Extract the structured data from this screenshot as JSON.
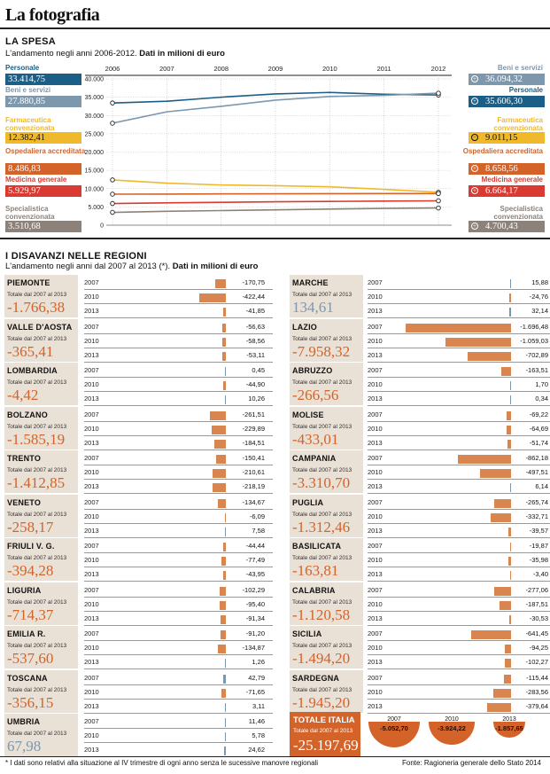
{
  "header": {
    "title": "La fotografia"
  },
  "spesa": {
    "title": "LA SPESA",
    "subtitle_a": "L'andamento negli anni 2006-2012. ",
    "subtitle_b": "Dati in milioni di euro",
    "left": [
      {
        "label": "Personale",
        "value": "33.414,75",
        "color": "#1b5e86",
        "text_dark": false
      },
      {
        "label": "Beni e servizi",
        "value": "27.880,85",
        "color": "#7d97ad",
        "text_dark": false
      },
      {
        "label": "Farmaceutica convenzionata",
        "value": "12.382,41",
        "color": "#f0b92b",
        "text_dark": true
      },
      {
        "label": "Ospedaliera accreditata",
        "value": "8.486,83",
        "color": "#d4632a",
        "text_dark": false
      },
      {
        "label": "Medicina generale",
        "value": "5.929,97",
        "color": "#d93a32",
        "text_dark": false
      },
      {
        "label": "Specialistica convenzionata",
        "value": "3.510,68",
        "color": "#8c8279",
        "text_dark": false
      }
    ],
    "right": [
      {
        "label": "Beni e servizi",
        "value": "36.094,32",
        "icon": "+",
        "color": "#7d97ad",
        "text_dark": false
      },
      {
        "label": "Personale",
        "value": "35.606,30",
        "icon": "+",
        "color": "#1b5e86",
        "text_dark": false
      },
      {
        "label": "Farmaceutica convenzionata",
        "value": "9.011,15",
        "icon": "−",
        "color": "#f0b92b",
        "text_dark": true
      },
      {
        "label": "Ospedaliera accreditata",
        "value": "8.658,56",
        "icon": "+",
        "color": "#d4632a",
        "text_dark": false
      },
      {
        "label": "Medicina generale",
        "value": "6.664,17",
        "icon": "+",
        "color": "#d93a32",
        "text_dark": false
      },
      {
        "label": "Specialistica convenzionata",
        "value": "4.700,43",
        "icon": "+",
        "color": "#8c8279",
        "text_dark": false
      }
    ]
  },
  "chart_data": [
    {
      "type": "line",
      "title": "LA SPESA",
      "x": [
        2006,
        2007,
        2008,
        2009,
        2010,
        2011,
        2012
      ],
      "ylim": [
        0,
        40000
      ],
      "yticks": [
        "40.000",
        "35.000",
        "30.000",
        "25.000",
        "20.000",
        "15.000",
        "10.000",
        "5.000",
        "0"
      ],
      "series": [
        {
          "name": "Personale",
          "color": "#1b5e86",
          "values": [
            33414.75,
            33900,
            35000,
            35900,
            36300,
            35800,
            35606.3
          ]
        },
        {
          "name": "Beni e servizi",
          "color": "#7d97ad",
          "values": [
            27880.85,
            31000,
            32500,
            34200,
            35200,
            35500,
            36094.32
          ]
        },
        {
          "name": "Farmaceutica convenzionata",
          "color": "#f0b92b",
          "values": [
            12382.41,
            11500,
            11000,
            10800,
            10500,
            9800,
            9011.15
          ]
        },
        {
          "name": "Ospedaliera accreditata",
          "color": "#d4632a",
          "values": [
            8486.83,
            8500,
            8550,
            8600,
            8620,
            8640,
            8658.56
          ]
        },
        {
          "name": "Medicina generale",
          "color": "#d93a32",
          "values": [
            5929.97,
            6100,
            6250,
            6400,
            6500,
            6600,
            6664.17
          ]
        },
        {
          "name": "Specialistica convenzionata",
          "color": "#8c8279",
          "values": [
            3510.68,
            3800,
            4000,
            4200,
            4400,
            4600,
            4700.43
          ]
        }
      ]
    },
    {
      "type": "bar",
      "title": "I DISAVANZI NELLE REGIONI",
      "categories": [
        "2007",
        "2010",
        "2013"
      ],
      "regions": [
        {
          "name": "PIEMONTE",
          "total": "-1.766,38",
          "values": [
            -170.75,
            -422.44,
            -41.85
          ],
          "labels": [
            "-170,75",
            "-422,44",
            "-41,85"
          ]
        },
        {
          "name": "VALLE D'AOSTA",
          "total": "-365,41",
          "values": [
            -56.63,
            -58.56,
            -53.11
          ],
          "labels": [
            "-56,63",
            "-58,56",
            "-53,11"
          ]
        },
        {
          "name": "LOMBARDIA",
          "total": "-4,42",
          "values": [
            0.45,
            -44.9,
            10.26
          ],
          "labels": [
            "0,45",
            "-44,90",
            "10,26"
          ]
        },
        {
          "name": "BOLZANO",
          "total": "-1.585,19",
          "values": [
            -261.51,
            -229.89,
            -184.51
          ],
          "labels": [
            "-261,51",
            "-229,89",
            "-184,51"
          ]
        },
        {
          "name": "TRENTO",
          "total": "-1.412,85",
          "values": [
            -150.41,
            -210.61,
            -218.19
          ],
          "labels": [
            "-150,41",
            "-210,61",
            "-218,19"
          ]
        },
        {
          "name": "VENETO",
          "total": "-258,17",
          "values": [
            -134.67,
            -6.09,
            7.58
          ],
          "labels": [
            "-134,67",
            "-6,09",
            "7,58"
          ]
        },
        {
          "name": "FRIULI V. G.",
          "total": "-394,28",
          "values": [
            -44.44,
            -77.49,
            -43.95
          ],
          "labels": [
            "-44,44",
            "-77,49",
            "-43,95"
          ]
        },
        {
          "name": "LIGURIA",
          "total": "-714,37",
          "values": [
            -102.29,
            -95.4,
            -91.34
          ],
          "labels": [
            "-102,29",
            "-95,40",
            "-91,34"
          ]
        },
        {
          "name": "EMILIA R.",
          "total": "-537,60",
          "values": [
            -91.2,
            -134.87,
            1.26
          ],
          "labels": [
            "-91,20",
            "-134,87",
            "1,26"
          ]
        },
        {
          "name": "TOSCANA",
          "total": "-356,15",
          "values": [
            42.79,
            -71.65,
            3.11
          ],
          "labels": [
            "42,79",
            "-71,65",
            "3,11"
          ]
        },
        {
          "name": "UMBRIA",
          "total": "67,98",
          "values": [
            11.46,
            5.78,
            24.62
          ],
          "labels": [
            "11,46",
            "5,78",
            "24,62"
          ]
        },
        {
          "name": "MARCHE",
          "total": "134,61",
          "values": [
            15.88,
            -24.76,
            32.14
          ],
          "labels": [
            "15,88",
            "-24,76",
            "32,14"
          ]
        },
        {
          "name": "LAZIO",
          "total": "-7.958,32",
          "values": [
            -1696.48,
            -1059.03,
            -702.89
          ],
          "labels": [
            "-1.696,48",
            "-1.059,03",
            "-702,89"
          ]
        },
        {
          "name": "ABRUZZO",
          "total": "-266,56",
          "values": [
            -163.51,
            1.7,
            0.34
          ],
          "labels": [
            "-163,51",
            "1,70",
            "0,34"
          ]
        },
        {
          "name": "MOLISE",
          "total": "-433,01",
          "values": [
            -69.22,
            -64.69,
            -51.74
          ],
          "labels": [
            "-69,22",
            "-64,69",
            "-51,74"
          ]
        },
        {
          "name": "CAMPANIA",
          "total": "-3.310,70",
          "values": [
            -862.18,
            -497.51,
            6.14
          ],
          "labels": [
            "-862,18",
            "-497,51",
            "6,14"
          ]
        },
        {
          "name": "PUGLIA",
          "total": "-1.312,46",
          "values": [
            -265.74,
            -332.71,
            -39.57
          ],
          "labels": [
            "-265,74",
            "-332,71",
            "-39,57"
          ]
        },
        {
          "name": "BASILICATA",
          "total": "-163,81",
          "values": [
            -19.87,
            -35.98,
            -3.4
          ],
          "labels": [
            "-19,87",
            "-35,98",
            "-3,40"
          ]
        },
        {
          "name": "CALABRIA",
          "total": "-1.120,58",
          "values": [
            -277.06,
            -187.51,
            -30.53
          ],
          "labels": [
            "-277,06",
            "-187,51",
            "-30,53"
          ]
        },
        {
          "name": "SICILIA",
          "total": "-1.494,20",
          "values": [
            -641.45,
            -94.25,
            -102.27
          ],
          "labels": [
            "-641,45",
            "-94,25",
            "-102,27"
          ]
        },
        {
          "name": "SARDEGNA",
          "total": "-1.945,20",
          "values": [
            -115.44,
            -283.56,
            -379.64
          ],
          "labels": [
            "-115,44",
            "-283,56",
            "-379,64"
          ]
        }
      ]
    }
  ],
  "regioni": {
    "title": "I DISAVANZI NELLE REGIONI",
    "subtitle_a": "L'andamento negli anni dal 2007 al 2013 (*). ",
    "subtitle_b": "Dati in milioni di euro",
    "total_label": "Totale dal 2007 al 2013"
  },
  "totale": {
    "name": "TOTALE ITALIA",
    "label": "Totale dal 2007 al 2013",
    "value": "-25.197,69",
    "years": [
      {
        "year": "2007",
        "value": "-5.052,70",
        "num": -5052.7
      },
      {
        "year": "2010",
        "value": "-3.924,22",
        "num": -3924.22
      },
      {
        "year": "2013",
        "value": "-1.857,65",
        "num": -1857.65
      }
    ]
  },
  "footer": {
    "note": "* I dati sono relativi alla situazione al IV trimestre di ogni anno senza le sucessive manovre regionali",
    "source": "Fonte: Ragioneria generale dello Stato 2014"
  }
}
